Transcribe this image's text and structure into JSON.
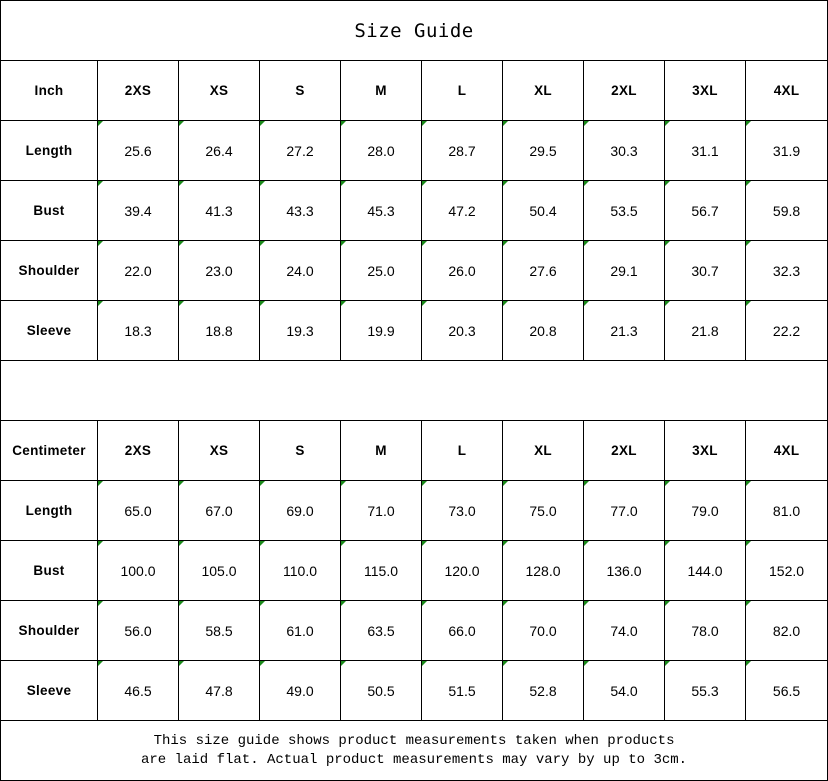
{
  "title": "Size Guide",
  "sizes": [
    "2XS",
    "XS",
    "S",
    "M",
    "L",
    "XL",
    "2XL",
    "3XL",
    "4XL"
  ],
  "indicator_color": "#1a8a1a",
  "inch": {
    "unit_label": "Inch",
    "rows": [
      {
        "label": "Length",
        "values": [
          "25.6",
          "26.4",
          "27.2",
          "28.0",
          "28.7",
          "29.5",
          "30.3",
          "31.1",
          "31.9"
        ]
      },
      {
        "label": "Bust",
        "values": [
          "39.4",
          "41.3",
          "43.3",
          "45.3",
          "47.2",
          "50.4",
          "53.5",
          "56.7",
          "59.8"
        ]
      },
      {
        "label": "Shoulder",
        "values": [
          "22.0",
          "23.0",
          "24.0",
          "25.0",
          "26.0",
          "27.6",
          "29.1",
          "30.7",
          "32.3"
        ]
      },
      {
        "label": "Sleeve",
        "values": [
          "18.3",
          "18.8",
          "19.3",
          "19.9",
          "20.3",
          "20.8",
          "21.3",
          "21.8",
          "22.2"
        ]
      }
    ]
  },
  "cm": {
    "unit_label": "Centimeter",
    "rows": [
      {
        "label": "Length",
        "values": [
          "65.0",
          "67.0",
          "69.0",
          "71.0",
          "73.0",
          "75.0",
          "77.0",
          "79.0",
          "81.0"
        ]
      },
      {
        "label": "Bust",
        "values": [
          "100.0",
          "105.0",
          "110.0",
          "115.0",
          "120.0",
          "128.0",
          "136.0",
          "144.0",
          "152.0"
        ]
      },
      {
        "label": "Shoulder",
        "values": [
          "56.0",
          "58.5",
          "61.0",
          "63.5",
          "66.0",
          "70.0",
          "74.0",
          "78.0",
          "82.0"
        ]
      },
      {
        "label": "Sleeve",
        "values": [
          "46.5",
          "47.8",
          "49.0",
          "50.5",
          "51.5",
          "52.8",
          "54.0",
          "55.3",
          "56.5"
        ]
      }
    ]
  },
  "note": {
    "line1": "This size guide shows product measurements taken when products",
    "line2": "are laid flat. Actual product measurements may vary by up to 3cm."
  }
}
